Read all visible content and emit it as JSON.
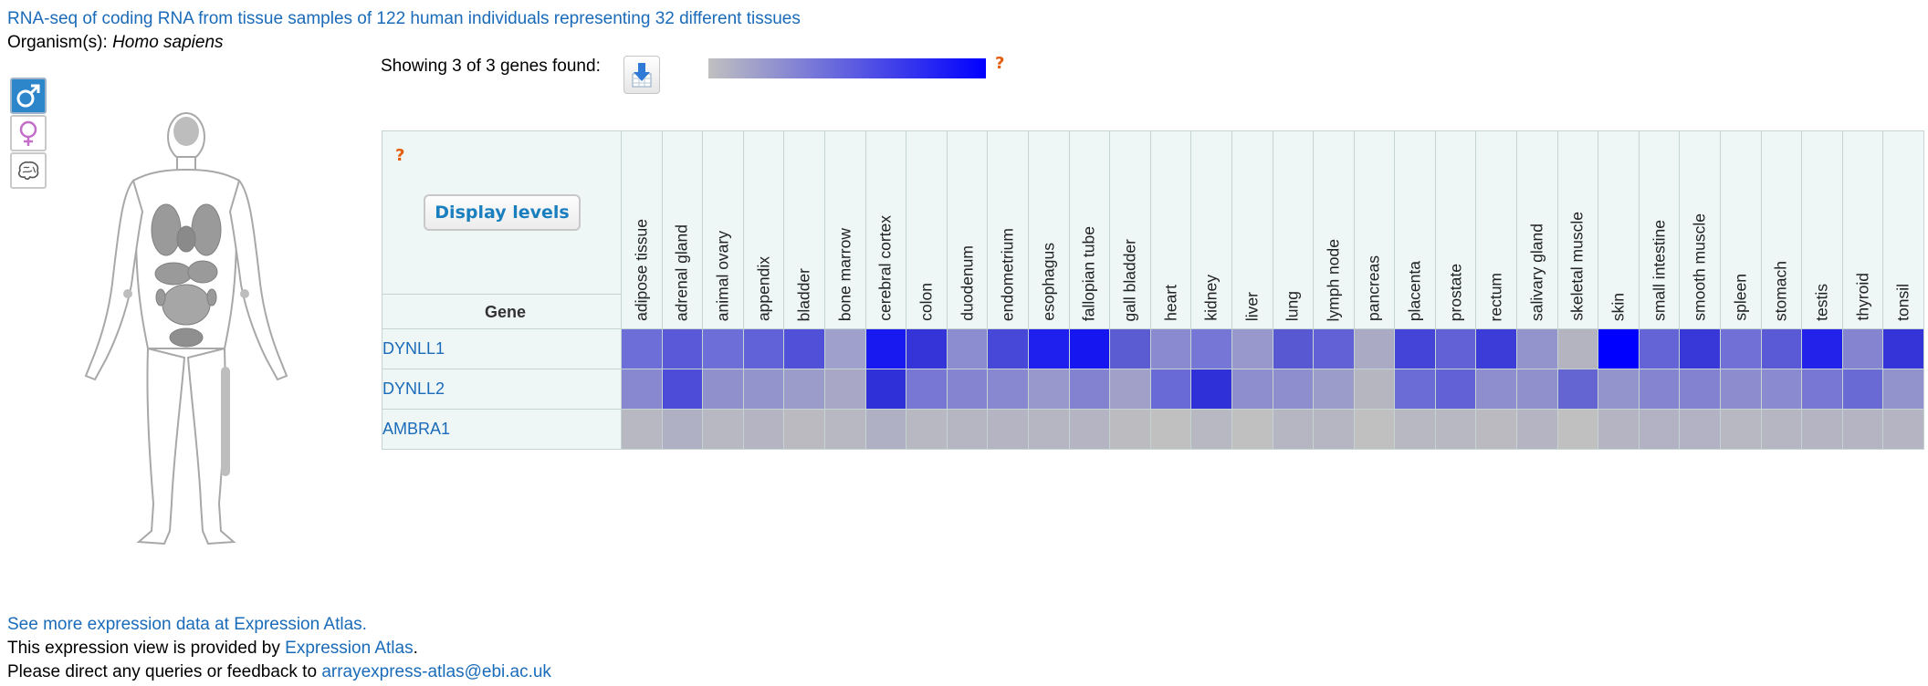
{
  "header": {
    "title": "RNA-seq of coding RNA from tissue samples of 122 human individuals representing 32 different tissues",
    "organism_label": "Organism(s): ",
    "organism_value": "Homo sapiens"
  },
  "anatomogram": {
    "buttons": [
      {
        "name": "male",
        "icon": "male-symbol-icon"
      },
      {
        "name": "female",
        "icon": "female-symbol-icon"
      },
      {
        "name": "brain",
        "icon": "brain-icon"
      }
    ]
  },
  "heatmap": {
    "showing_text": "Showing 3 of 3 genes found:",
    "help_mark": "?",
    "display_levels_label": "Display levels",
    "gene_column_header": "Gene",
    "gradient": {
      "low_color": "#c0c0c0",
      "high_color": "#0000ff"
    },
    "tissues": [
      "adipose tissue",
      "adrenal gland",
      "animal ovary",
      "appendix",
      "bladder",
      "bone marrow",
      "cerebral cortex",
      "colon",
      "duodenum",
      "endometrium",
      "esophagus",
      "fallopian tube",
      "gall bladder",
      "heart",
      "kidney",
      "liver",
      "lung",
      "lymph node",
      "pancreas",
      "placenta",
      "prostate",
      "rectum",
      "salivary gland",
      "skeletal muscle",
      "skin",
      "small intestine",
      "smooth muscle",
      "spleen",
      "stomach",
      "testis",
      "thyroid",
      "tonsil"
    ],
    "genes": [
      {
        "name": "DYNLL1",
        "colors": [
          "#6e6ed8",
          "#5a5ad8",
          "#6e6ed8",
          "#6262d8",
          "#5050d8",
          "#a0a0cc",
          "#1818f0",
          "#3434d8",
          "#8c8cd0",
          "#4848d8",
          "#2020ee",
          "#1616f0",
          "#5c5cd2",
          "#8a8ad0",
          "#7676d6",
          "#9898cc",
          "#5858d2",
          "#6262d6",
          "#aaaac4",
          "#4444d8",
          "#6262d6",
          "#3c3cd8",
          "#9494cc",
          "#b4b4c0",
          "#0000ff",
          "#6464d6",
          "#3838d8",
          "#7070d6",
          "#5a5ad6",
          "#2222ea",
          "#8484d0",
          "#3434d8"
        ]
      },
      {
        "name": "DYNLL2",
        "colors": [
          "#8888d0",
          "#4c4cd8",
          "#9090cc",
          "#9494cc",
          "#9c9cca",
          "#a8a8c6",
          "#3030d8",
          "#7878d4",
          "#8484d0",
          "#8888d0",
          "#9898cc",
          "#8282d0",
          "#a0a0c8",
          "#6a6ad6",
          "#3030d8",
          "#8e8ece",
          "#8e8ece",
          "#9c9cca",
          "#b6b6c0",
          "#6c6cd6",
          "#6262d6",
          "#8e8ece",
          "#9090cc",
          "#6464d2",
          "#9494cc",
          "#8484d0",
          "#8282d0",
          "#8c8cce",
          "#8a8ad0",
          "#7878d4",
          "#6a6ad4",
          "#9292cc"
        ]
      },
      {
        "name": "AMBRA1",
        "colors": [
          "#b8b8c2",
          "#b0b0c4",
          "#b8b8c2",
          "#b4b4c2",
          "#babac0",
          "#b8b8c2",
          "#b0b0c4",
          "#b8b8c2",
          "#b6b6c2",
          "#b4b4c2",
          "#b6b6c2",
          "#b4b4c2",
          "#bcbcc0",
          "#c0c0c0",
          "#b8b8c2",
          "#c0c0c0",
          "#b6b6c2",
          "#b6b6c2",
          "#c0c0c0",
          "#b8b8c2",
          "#b8b8c2",
          "#babac0",
          "#b4b4c2",
          "#c0c0c0",
          "#b4b4c2",
          "#b2b2c4",
          "#b2b2c4",
          "#b8b8c2",
          "#b6b6c2",
          "#b4b4c2",
          "#b4b4c2",
          "#b4b4c2"
        ]
      }
    ]
  },
  "footer": {
    "more_link": "See more expression data at Expression Atlas.",
    "provided_prefix": "This expression view is provided by ",
    "provided_link": "Expression Atlas",
    "provided_suffix": ".",
    "contact_prefix": "Please direct any queries or feedback to ",
    "contact_email": "arrayexpress-atlas@ebi.ac.uk"
  }
}
